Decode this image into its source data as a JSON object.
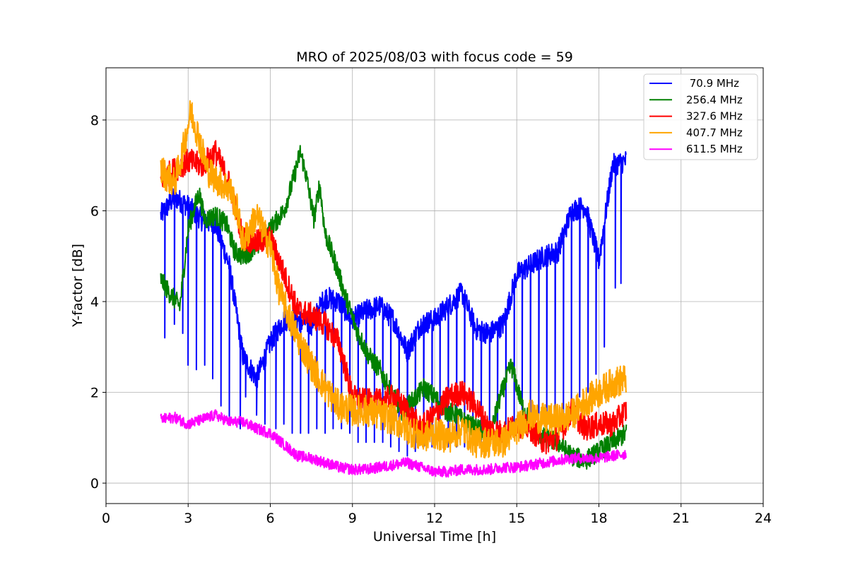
{
  "chart_data": {
    "type": "line",
    "title": "MRO of 2025/08/03 with focus code = 59",
    "xlabel": "Universal Time [h]",
    "ylabel": "Y-factor [dB]",
    "xlim": [
      0,
      24
    ],
    "ylim": [
      -0.45,
      9.15
    ],
    "xticks": [
      0,
      3,
      6,
      9,
      12,
      15,
      18,
      21,
      24
    ],
    "yticks": [
      0,
      2,
      4,
      6,
      8
    ],
    "grid": true,
    "legend_position": "top-right",
    "series": [
      {
        "name": " 70.9 MHz",
        "color": "#0000ff",
        "points": [
          [
            2.0,
            5.9
          ],
          [
            2.5,
            6.3
          ],
          [
            3.0,
            6.1
          ],
          [
            3.5,
            5.8
          ],
          [
            4.0,
            5.7
          ],
          [
            4.5,
            4.8
          ],
          [
            5.0,
            2.8
          ],
          [
            5.5,
            2.3
          ],
          [
            6.0,
            3.1
          ],
          [
            6.5,
            3.6
          ],
          [
            7.0,
            3.6
          ],
          [
            7.5,
            3.5
          ],
          [
            8.0,
            4.1
          ],
          [
            8.5,
            4.0
          ],
          [
            9.0,
            3.6
          ],
          [
            9.5,
            3.8
          ],
          [
            10.0,
            3.9
          ],
          [
            10.5,
            3.6
          ],
          [
            11.0,
            2.9
          ],
          [
            11.5,
            3.5
          ],
          [
            12.0,
            3.6
          ],
          [
            12.5,
            3.9
          ],
          [
            13.0,
            4.2
          ],
          [
            13.5,
            3.4
          ],
          [
            14.0,
            3.3
          ],
          [
            14.5,
            3.5
          ],
          [
            15.0,
            4.6
          ],
          [
            15.5,
            4.8
          ],
          [
            16.0,
            5.0
          ],
          [
            16.5,
            5.1
          ],
          [
            17.0,
            6.0
          ],
          [
            17.5,
            6.1
          ],
          [
            18.0,
            4.9
          ],
          [
            18.5,
            7.0
          ],
          [
            19.0,
            7.1
          ]
        ],
        "dropouts": [
          [
            2.15,
            3.2
          ],
          [
            2.5,
            3.5
          ],
          [
            2.8,
            3.3
          ],
          [
            3.0,
            2.6
          ],
          [
            3.3,
            2.5
          ],
          [
            3.6,
            2.6
          ],
          [
            3.9,
            2.3
          ],
          [
            4.2,
            1.7
          ],
          [
            4.5,
            1.4
          ],
          [
            4.9,
            1.2
          ],
          [
            5.1,
            1.9
          ],
          [
            5.5,
            1.5
          ],
          [
            5.8,
            1.3
          ],
          [
            6.2,
            1.2
          ],
          [
            6.5,
            1.3
          ],
          [
            6.8,
            1.1
          ],
          [
            7.1,
            1.1
          ],
          [
            7.4,
            1.1
          ],
          [
            7.7,
            1.2
          ],
          [
            8.0,
            1.1
          ],
          [
            8.3,
            1.2
          ],
          [
            8.6,
            1.2
          ],
          [
            8.9,
            1.1
          ],
          [
            9.2,
            0.9
          ],
          [
            9.5,
            0.9
          ],
          [
            9.8,
            0.9
          ],
          [
            10.1,
            0.9
          ],
          [
            10.4,
            0.8
          ],
          [
            10.7,
            0.7
          ],
          [
            11.0,
            0.6
          ],
          [
            11.3,
            0.7
          ],
          [
            11.6,
            0.8
          ],
          [
            11.9,
            0.8
          ],
          [
            12.2,
            0.8
          ],
          [
            12.5,
            0.8
          ],
          [
            12.8,
            0.8
          ],
          [
            13.1,
            0.8
          ],
          [
            13.4,
            0.9
          ],
          [
            13.7,
            0.9
          ],
          [
            14.0,
            0.9
          ],
          [
            14.3,
            0.9
          ],
          [
            14.6,
            1.0
          ],
          [
            14.9,
            1.0
          ],
          [
            15.2,
            1.0
          ],
          [
            15.5,
            1.1
          ],
          [
            15.8,
            1.1
          ],
          [
            16.1,
            1.2
          ],
          [
            16.4,
            1.3
          ],
          [
            16.7,
            1.4
          ],
          [
            17.0,
            1.6
          ],
          [
            17.3,
            1.9
          ],
          [
            17.6,
            2.0
          ],
          [
            17.9,
            2.4
          ],
          [
            18.2,
            3.0
          ],
          [
            18.6,
            4.3
          ],
          [
            18.8,
            4.4
          ]
        ]
      },
      {
        "name": "256.4 MHz",
        "color": "#008000",
        "points": [
          [
            2.0,
            4.5
          ],
          [
            2.3,
            4.2
          ],
          [
            2.7,
            3.9
          ],
          [
            3.0,
            5.6
          ],
          [
            3.4,
            6.4
          ],
          [
            3.6,
            5.8
          ],
          [
            4.0,
            5.9
          ],
          [
            4.4,
            5.7
          ],
          [
            4.7,
            5.1
          ],
          [
            5.0,
            5.0
          ],
          [
            5.5,
            5.2
          ],
          [
            6.0,
            5.6
          ],
          [
            6.5,
            6.0
          ],
          [
            6.8,
            6.6
          ],
          [
            7.1,
            7.3
          ],
          [
            7.3,
            6.8
          ],
          [
            7.6,
            5.8
          ],
          [
            7.8,
            6.6
          ],
          [
            8.0,
            5.5
          ],
          [
            8.4,
            4.8
          ],
          [
            8.8,
            4.0
          ],
          [
            9.2,
            3.3
          ],
          [
            9.6,
            2.8
          ],
          [
            10.0,
            2.5
          ],
          [
            10.4,
            2.0
          ],
          [
            10.8,
            1.6
          ],
          [
            11.2,
            1.8
          ],
          [
            11.6,
            2.1
          ],
          [
            12.0,
            1.9
          ],
          [
            12.4,
            1.6
          ],
          [
            12.8,
            1.5
          ],
          [
            13.2,
            1.3
          ],
          [
            13.6,
            1.2
          ],
          [
            14.0,
            1.0
          ],
          [
            14.4,
            1.9
          ],
          [
            14.8,
            2.6
          ],
          [
            15.2,
            1.7
          ],
          [
            15.6,
            1.2
          ],
          [
            16.0,
            1.0
          ],
          [
            16.5,
            0.9
          ],
          [
            17.0,
            0.6
          ],
          [
            17.5,
            0.5
          ],
          [
            18.0,
            0.7
          ],
          [
            18.5,
            0.9
          ],
          [
            19.0,
            1.1
          ]
        ]
      },
      {
        "name": "327.6 MHz",
        "color": "#ff0000",
        "points": [
          [
            2.0,
            6.7
          ],
          [
            2.5,
            6.9
          ],
          [
            3.0,
            7.1
          ],
          [
            3.5,
            7.0
          ],
          [
            4.0,
            7.3
          ],
          [
            4.5,
            6.6
          ],
          [
            5.0,
            5.4
          ],
          [
            5.5,
            5.3
          ],
          [
            6.0,
            5.4
          ],
          [
            6.5,
            4.6
          ],
          [
            7.0,
            3.8
          ],
          [
            7.5,
            3.7
          ],
          [
            8.0,
            3.5
          ],
          [
            8.5,
            3.1
          ],
          [
            9.0,
            1.9
          ],
          [
            9.5,
            1.8
          ],
          [
            10.0,
            1.8
          ],
          [
            10.5,
            1.9
          ],
          [
            11.0,
            1.6
          ],
          [
            11.5,
            1.2
          ],
          [
            12.0,
            1.5
          ],
          [
            12.5,
            1.9
          ],
          [
            13.0,
            2.0
          ],
          [
            13.5,
            1.7
          ],
          [
            14.0,
            1.2
          ],
          [
            14.5,
            1.1
          ],
          [
            15.0,
            1.3
          ],
          [
            15.5,
            1.2
          ],
          [
            16.0,
            0.9
          ],
          [
            16.5,
            1.0
          ],
          [
            17.0,
            1.6
          ],
          [
            17.5,
            1.2
          ],
          [
            18.0,
            1.3
          ],
          [
            18.5,
            1.3
          ],
          [
            19.0,
            1.6
          ]
        ]
      },
      {
        "name": "407.7 MHz",
        "color": "#ffa500",
        "points": [
          [
            2.0,
            6.9
          ],
          [
            2.5,
            6.6
          ],
          [
            2.8,
            7.3
          ],
          [
            3.1,
            8.2
          ],
          [
            3.4,
            7.6
          ],
          [
            3.7,
            6.9
          ],
          [
            4.0,
            6.7
          ],
          [
            4.5,
            6.5
          ],
          [
            4.8,
            6.0
          ],
          [
            5.0,
            5.3
          ],
          [
            5.5,
            5.9
          ],
          [
            6.0,
            5.2
          ],
          [
            6.3,
            4.3
          ],
          [
            6.6,
            3.8
          ],
          [
            7.0,
            3.2
          ],
          [
            7.5,
            2.6
          ],
          [
            8.0,
            2.1
          ],
          [
            8.5,
            1.7
          ],
          [
            9.0,
            1.6
          ],
          [
            9.5,
            1.6
          ],
          [
            10.0,
            1.5
          ],
          [
            10.5,
            1.4
          ],
          [
            11.0,
            1.2
          ],
          [
            11.5,
            1.0
          ],
          [
            12.0,
            1.1
          ],
          [
            12.5,
            1.0
          ],
          [
            13.0,
            1.2
          ],
          [
            13.5,
            0.9
          ],
          [
            14.0,
            0.9
          ],
          [
            14.5,
            0.9
          ],
          [
            15.0,
            1.2
          ],
          [
            15.5,
            1.5
          ],
          [
            16.0,
            1.4
          ],
          [
            16.5,
            1.4
          ],
          [
            17.0,
            1.5
          ],
          [
            17.5,
            1.8
          ],
          [
            18.0,
            2.0
          ],
          [
            18.5,
            2.2
          ],
          [
            19.0,
            2.3
          ]
        ]
      },
      {
        "name": "611.5 MHz",
        "color": "#ff00ff",
        "points": [
          [
            2.0,
            1.4
          ],
          [
            2.5,
            1.45
          ],
          [
            3.0,
            1.3
          ],
          [
            3.5,
            1.4
          ],
          [
            4.0,
            1.5
          ],
          [
            4.5,
            1.35
          ],
          [
            5.0,
            1.35
          ],
          [
            5.5,
            1.2
          ],
          [
            6.0,
            1.1
          ],
          [
            6.5,
            0.85
          ],
          [
            7.0,
            0.6
          ],
          [
            7.5,
            0.55
          ],
          [
            8.0,
            0.45
          ],
          [
            8.5,
            0.35
          ],
          [
            9.0,
            0.3
          ],
          [
            9.5,
            0.3
          ],
          [
            10.0,
            0.35
          ],
          [
            10.5,
            0.4
          ],
          [
            11.0,
            0.45
          ],
          [
            11.5,
            0.35
          ],
          [
            12.0,
            0.25
          ],
          [
            12.5,
            0.25
          ],
          [
            13.0,
            0.3
          ],
          [
            13.5,
            0.3
          ],
          [
            14.0,
            0.3
          ],
          [
            14.5,
            0.35
          ],
          [
            15.0,
            0.35
          ],
          [
            15.5,
            0.4
          ],
          [
            16.0,
            0.45
          ],
          [
            16.5,
            0.5
          ],
          [
            17.0,
            0.55
          ],
          [
            17.5,
            0.55
          ],
          [
            18.0,
            0.55
          ],
          [
            18.5,
            0.6
          ],
          [
            19.0,
            0.65
          ]
        ]
      }
    ]
  }
}
